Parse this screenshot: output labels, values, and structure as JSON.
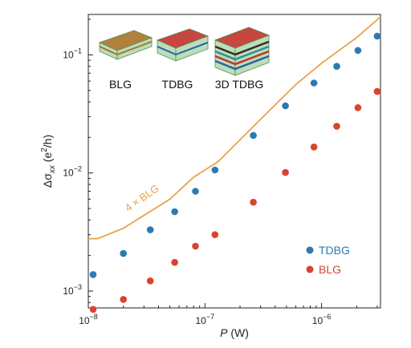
{
  "chart_data": {
    "type": "scatter",
    "xscale": "log",
    "yscale": "log",
    "xlim": [
      1e-08,
      3.2e-06
    ],
    "ylim": [
      0.00072,
      0.22
    ],
    "xlabel": {
      "sym": "P",
      "unit": " (W)"
    },
    "ylabel": {
      "pre": "Δσ",
      "sub": "xx",
      "unit_open": " (e",
      "sup": "2",
      "unit_close": "/h)"
    },
    "x_ticks": [
      {
        "value": 1e-08,
        "base": "10",
        "exp": "−8"
      },
      {
        "value": 1e-07,
        "base": "10",
        "exp": "−7"
      },
      {
        "value": 1e-06,
        "base": "10",
        "exp": "−6"
      }
    ],
    "y_ticks": [
      {
        "value": 0.001,
        "base": "10",
        "exp": "−3"
      },
      {
        "value": 0.01,
        "base": "10",
        "exp": "−2"
      },
      {
        "value": 0.1,
        "base": "10",
        "exp": "−1"
      }
    ],
    "grid": false,
    "legend_position": "bottom-right",
    "series": [
      {
        "name": "TDBG",
        "color": "#2b7bb0",
        "marker": "circle",
        "x": [
          1.1e-08,
          2e-08,
          3.4e-08,
          5.5e-08,
          8.3e-08,
          1.22e-07,
          2.6e-07,
          4.9e-07,
          8.6e-07,
          1.35e-06,
          2.05e-06,
          3e-06
        ],
        "y": [
          0.00138,
          0.00208,
          0.0033,
          0.0047,
          0.007,
          0.0106,
          0.0208,
          0.037,
          0.0578,
          0.08,
          0.109,
          0.144
        ]
      },
      {
        "name": "BLG",
        "color": "#d9432f",
        "marker": "circle",
        "x": [
          1.1e-08,
          2e-08,
          3.4e-08,
          5.5e-08,
          8.3e-08,
          1.22e-07,
          2.6e-07,
          4.9e-07,
          8.6e-07,
          1.35e-06,
          2.05e-06,
          3e-06
        ],
        "y": [
          0.0007,
          0.00085,
          0.00122,
          0.00175,
          0.0024,
          0.003,
          0.00565,
          0.0101,
          0.0166,
          0.0249,
          0.0357,
          0.049
        ]
      },
      {
        "name": "4 × BLG",
        "color": "#eba14a",
        "marker": "line",
        "x": [
          1e-08,
          1.2e-08,
          2e-08,
          5e-08,
          8e-08,
          1.3e-07,
          3e-07,
          6e-07,
          1e-06,
          2e-06,
          3.2e-06
        ],
        "y": [
          0.00278,
          0.00278,
          0.0034,
          0.006,
          0.0092,
          0.0125,
          0.0285,
          0.056,
          0.085,
          0.14,
          0.21
        ]
      }
    ],
    "annotation": "4 × BLG",
    "legend": [
      {
        "label": "TDBG",
        "color": "#2b7bb0"
      },
      {
        "label": "BLG",
        "color": "#d9432f"
      }
    ],
    "inset": {
      "labels": [
        "BLG",
        "TDBG",
        "3D TDBG"
      ],
      "colors": {
        "frame": "#b6dcb4",
        "blg_layer": "#a77328",
        "tdbg_layer": "#c2322c",
        "teal_layer": "#2e8e9c",
        "blue_layer": "#2d5fa8",
        "dark_layer": "#3a2a22"
      }
    }
  }
}
